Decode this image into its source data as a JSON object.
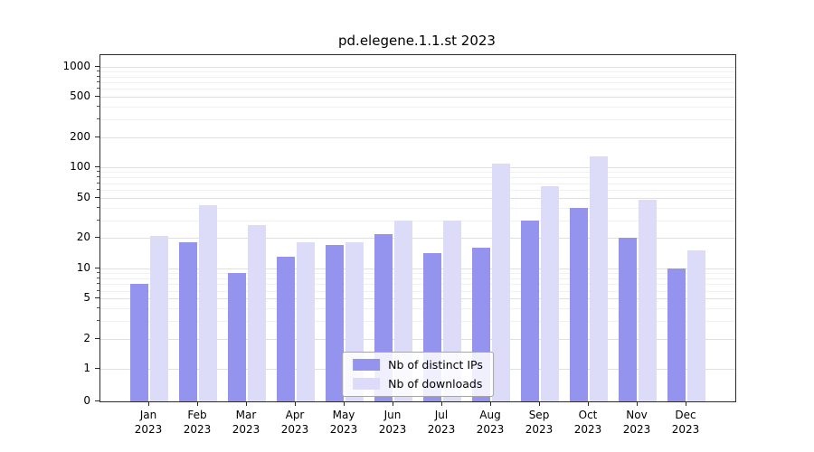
{
  "title": "pd.elegene.1.1.st 2023",
  "chart_data": {
    "type": "bar",
    "title": "pd.elegene.1.1.st 2023",
    "yscale": "symlog",
    "ylim": [
      0,
      1300
    ],
    "yticks": [
      0,
      1,
      2,
      5,
      10,
      20,
      50,
      100,
      200,
      500,
      1000
    ],
    "minor_yticks": [
      3,
      4,
      6,
      7,
      8,
      9,
      30,
      40,
      60,
      70,
      80,
      90,
      300,
      400,
      600,
      700,
      800,
      900
    ],
    "grid": true,
    "legend_position": "lower center",
    "categories": [
      "Jan",
      "Feb",
      "Mar",
      "Apr",
      "May",
      "Jun",
      "Jul",
      "Aug",
      "Sep",
      "Oct",
      "Nov",
      "Dec"
    ],
    "category_year": "2023",
    "series": [
      {
        "name": "Nb of distinct IPs",
        "color": "#9494ef",
        "values": [
          7,
          18,
          9,
          13,
          17,
          22,
          14,
          16,
          30,
          40,
          20,
          10
        ]
      },
      {
        "name": "Nb of downloads",
        "color": "#dcdcf9",
        "values": [
          21,
          42,
          27,
          18,
          18,
          30,
          30,
          110,
          65,
          130,
          48,
          15
        ]
      }
    ]
  }
}
